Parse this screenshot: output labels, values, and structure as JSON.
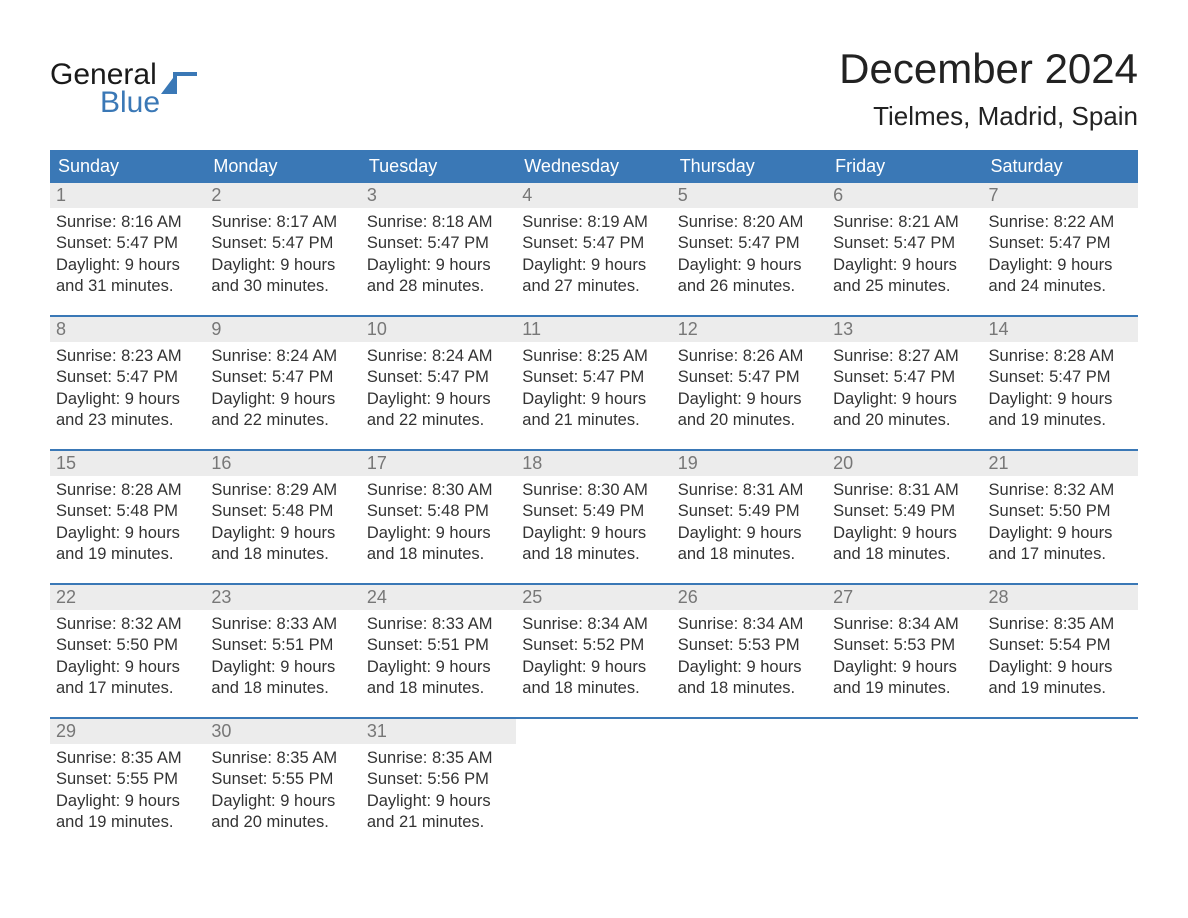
{
  "logo": {
    "text_general": "General",
    "text_blue": "Blue",
    "mark_color": "#3a78b6"
  },
  "title": "December 2024",
  "location": "Tielmes, Madrid, Spain",
  "colors": {
    "header_bg": "#3a78b6",
    "header_text": "#ffffff",
    "daynum_bg": "#ececec",
    "daynum_text": "#777777",
    "body_text": "#333333",
    "rule": "#3a78b6",
    "page_bg": "#ffffff"
  },
  "typography": {
    "title_fontsize": 42,
    "location_fontsize": 26,
    "dow_fontsize": 18,
    "daynum_fontsize": 18,
    "cell_fontsize": 16.5
  },
  "calendar": {
    "days_of_week": [
      "Sunday",
      "Monday",
      "Tuesday",
      "Wednesday",
      "Thursday",
      "Friday",
      "Saturday"
    ],
    "weeks": [
      [
        {
          "num": "1",
          "sunrise": "8:16 AM",
          "sunset": "5:47 PM",
          "daylight_l1": "9 hours",
          "daylight_l2": "and 31 minutes."
        },
        {
          "num": "2",
          "sunrise": "8:17 AM",
          "sunset": "5:47 PM",
          "daylight_l1": "9 hours",
          "daylight_l2": "and 30 minutes."
        },
        {
          "num": "3",
          "sunrise": "8:18 AM",
          "sunset": "5:47 PM",
          "daylight_l1": "9 hours",
          "daylight_l2": "and 28 minutes."
        },
        {
          "num": "4",
          "sunrise": "8:19 AM",
          "sunset": "5:47 PM",
          "daylight_l1": "9 hours",
          "daylight_l2": "and 27 minutes."
        },
        {
          "num": "5",
          "sunrise": "8:20 AM",
          "sunset": "5:47 PM",
          "daylight_l1": "9 hours",
          "daylight_l2": "and 26 minutes."
        },
        {
          "num": "6",
          "sunrise": "8:21 AM",
          "sunset": "5:47 PM",
          "daylight_l1": "9 hours",
          "daylight_l2": "and 25 minutes."
        },
        {
          "num": "7",
          "sunrise": "8:22 AM",
          "sunset": "5:47 PM",
          "daylight_l1": "9 hours",
          "daylight_l2": "and 24 minutes."
        }
      ],
      [
        {
          "num": "8",
          "sunrise": "8:23 AM",
          "sunset": "5:47 PM",
          "daylight_l1": "9 hours",
          "daylight_l2": "and 23 minutes."
        },
        {
          "num": "9",
          "sunrise": "8:24 AM",
          "sunset": "5:47 PM",
          "daylight_l1": "9 hours",
          "daylight_l2": "and 22 minutes."
        },
        {
          "num": "10",
          "sunrise": "8:24 AM",
          "sunset": "5:47 PM",
          "daylight_l1": "9 hours",
          "daylight_l2": "and 22 minutes."
        },
        {
          "num": "11",
          "sunrise": "8:25 AM",
          "sunset": "5:47 PM",
          "daylight_l1": "9 hours",
          "daylight_l2": "and 21 minutes."
        },
        {
          "num": "12",
          "sunrise": "8:26 AM",
          "sunset": "5:47 PM",
          "daylight_l1": "9 hours",
          "daylight_l2": "and 20 minutes."
        },
        {
          "num": "13",
          "sunrise": "8:27 AM",
          "sunset": "5:47 PM",
          "daylight_l1": "9 hours",
          "daylight_l2": "and 20 minutes."
        },
        {
          "num": "14",
          "sunrise": "8:28 AM",
          "sunset": "5:47 PM",
          "daylight_l1": "9 hours",
          "daylight_l2": "and 19 minutes."
        }
      ],
      [
        {
          "num": "15",
          "sunrise": "8:28 AM",
          "sunset": "5:48 PM",
          "daylight_l1": "9 hours",
          "daylight_l2": "and 19 minutes."
        },
        {
          "num": "16",
          "sunrise": "8:29 AM",
          "sunset": "5:48 PM",
          "daylight_l1": "9 hours",
          "daylight_l2": "and 18 minutes."
        },
        {
          "num": "17",
          "sunrise": "8:30 AM",
          "sunset": "5:48 PM",
          "daylight_l1": "9 hours",
          "daylight_l2": "and 18 minutes."
        },
        {
          "num": "18",
          "sunrise": "8:30 AM",
          "sunset": "5:49 PM",
          "daylight_l1": "9 hours",
          "daylight_l2": "and 18 minutes."
        },
        {
          "num": "19",
          "sunrise": "8:31 AM",
          "sunset": "5:49 PM",
          "daylight_l1": "9 hours",
          "daylight_l2": "and 18 minutes."
        },
        {
          "num": "20",
          "sunrise": "8:31 AM",
          "sunset": "5:49 PM",
          "daylight_l1": "9 hours",
          "daylight_l2": "and 18 minutes."
        },
        {
          "num": "21",
          "sunrise": "8:32 AM",
          "sunset": "5:50 PM",
          "daylight_l1": "9 hours",
          "daylight_l2": "and 17 minutes."
        }
      ],
      [
        {
          "num": "22",
          "sunrise": "8:32 AM",
          "sunset": "5:50 PM",
          "daylight_l1": "9 hours",
          "daylight_l2": "and 17 minutes."
        },
        {
          "num": "23",
          "sunrise": "8:33 AM",
          "sunset": "5:51 PM",
          "daylight_l1": "9 hours",
          "daylight_l2": "and 18 minutes."
        },
        {
          "num": "24",
          "sunrise": "8:33 AM",
          "sunset": "5:51 PM",
          "daylight_l1": "9 hours",
          "daylight_l2": "and 18 minutes."
        },
        {
          "num": "25",
          "sunrise": "8:34 AM",
          "sunset": "5:52 PM",
          "daylight_l1": "9 hours",
          "daylight_l2": "and 18 minutes."
        },
        {
          "num": "26",
          "sunrise": "8:34 AM",
          "sunset": "5:53 PM",
          "daylight_l1": "9 hours",
          "daylight_l2": "and 18 minutes."
        },
        {
          "num": "27",
          "sunrise": "8:34 AM",
          "sunset": "5:53 PM",
          "daylight_l1": "9 hours",
          "daylight_l2": "and 19 minutes."
        },
        {
          "num": "28",
          "sunrise": "8:35 AM",
          "sunset": "5:54 PM",
          "daylight_l1": "9 hours",
          "daylight_l2": "and 19 minutes."
        }
      ],
      [
        {
          "num": "29",
          "sunrise": "8:35 AM",
          "sunset": "5:55 PM",
          "daylight_l1": "9 hours",
          "daylight_l2": "and 19 minutes."
        },
        {
          "num": "30",
          "sunrise": "8:35 AM",
          "sunset": "5:55 PM",
          "daylight_l1": "9 hours",
          "daylight_l2": "and 20 minutes."
        },
        {
          "num": "31",
          "sunrise": "8:35 AM",
          "sunset": "5:56 PM",
          "daylight_l1": "9 hours",
          "daylight_l2": "and 21 minutes."
        },
        null,
        null,
        null,
        null
      ]
    ],
    "labels": {
      "sunrise_prefix": "Sunrise: ",
      "sunset_prefix": "Sunset: ",
      "daylight_prefix": "Daylight: "
    }
  }
}
